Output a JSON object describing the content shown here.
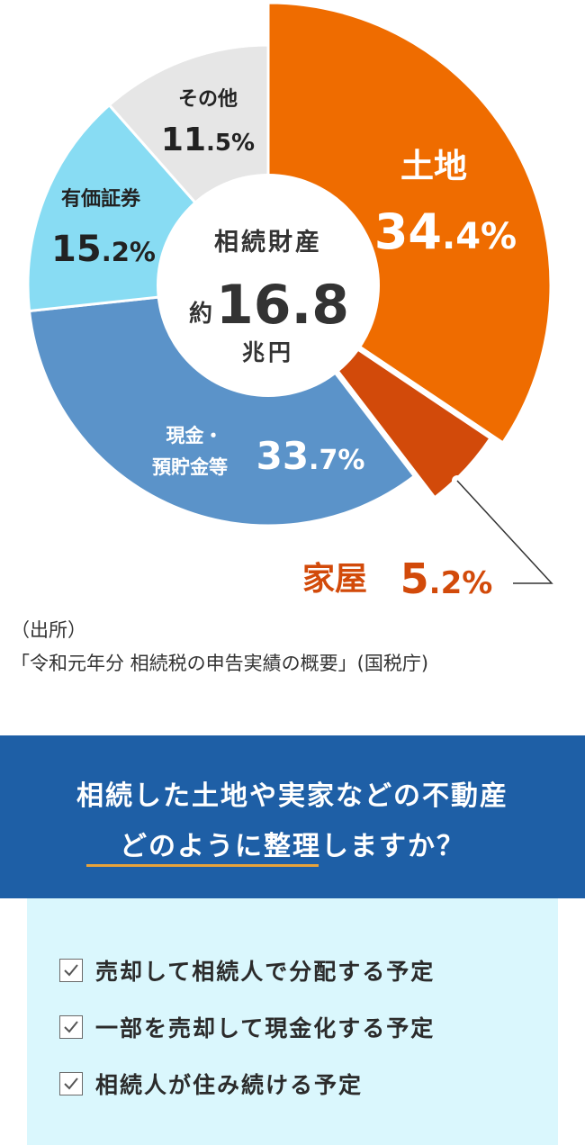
{
  "chart_data": {
    "type": "pie",
    "donut": true,
    "center": {
      "line1": "相続財産",
      "prefix": "約",
      "value": "16.8",
      "unit": "兆円"
    },
    "slices": [
      {
        "label": "土地",
        "value": 34.4,
        "num": "34",
        "dec": ".4",
        "pct": "%",
        "color": "#ef6c00",
        "text_color": "#ffffff"
      },
      {
        "label": "家屋",
        "value": 5.2,
        "num": "5",
        "dec": ".2",
        "pct": "%",
        "color": "#d24a0a",
        "text_color": "#d24a0a"
      },
      {
        "label": "現金・預貯金等",
        "label_line1": "現金・",
        "label_line2": "預貯金等",
        "value": 33.7,
        "num": "33",
        "dec": ".7",
        "pct": "%",
        "color": "#5b93c9",
        "text_color": "#ffffff"
      },
      {
        "label": "有価証券",
        "value": 15.2,
        "num": "15",
        "dec": ".2",
        "pct": "%",
        "color": "#88dcf3",
        "text_color": "#222222"
      },
      {
        "label": "その他",
        "value": 11.5,
        "num": "11",
        "dec": ".5",
        "pct": "%",
        "color": "#e6e6e6",
        "text_color": "#222222"
      }
    ]
  },
  "source": {
    "line1": "（出所）",
    "line2": "「令和元年分 相続税の申告実績の概要」(国税庁)"
  },
  "banner": {
    "line1": "相続した土地や実家などの不動産",
    "line2": "どのように整理しますか？",
    "color": "#1e5fa6",
    "underline_color": "#e8a33a"
  },
  "options": [
    {
      "label": "売却して相続人で分配する予定"
    },
    {
      "label": "一部を売却して現金化する予定"
    },
    {
      "label": "相続人が住み続ける予定"
    }
  ]
}
